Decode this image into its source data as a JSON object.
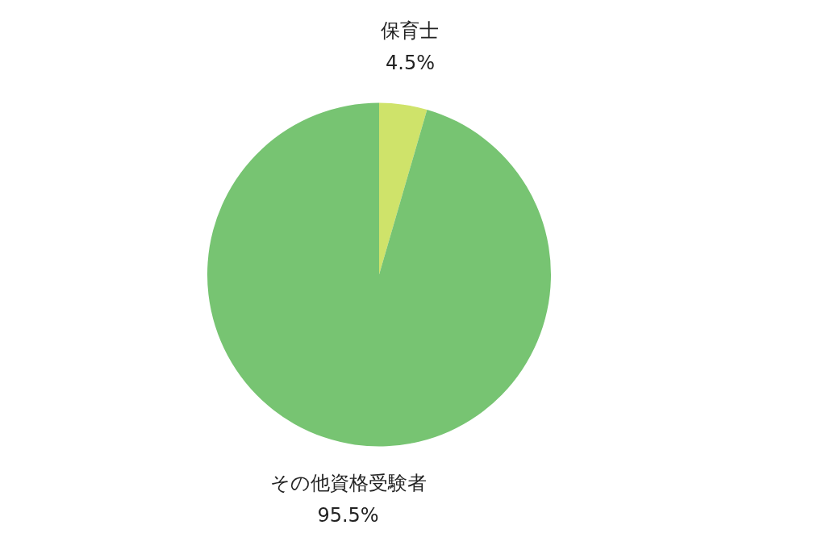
{
  "chart_data": {
    "type": "pie",
    "categories": [
      "保育士",
      "その他資格受験者"
    ],
    "values": [
      4.5,
      95.5
    ],
    "colors": [
      "#cfe36a",
      "#77c472"
    ],
    "value_labels": [
      "4.5%",
      "95.5%"
    ],
    "legend": false
  }
}
